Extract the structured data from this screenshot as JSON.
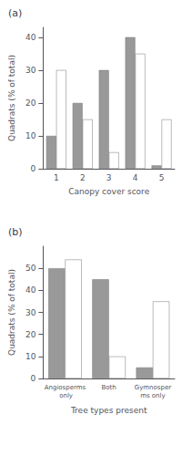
{
  "chart_data": [
    {
      "type": "bar",
      "title": "(a)",
      "categories": [
        "1",
        "2",
        "3",
        "4",
        "5"
      ],
      "series": [
        {
          "color": "#999999",
          "values": [
            10,
            20,
            30,
            40,
            1
          ]
        },
        {
          "color": "#ffffff",
          "values": [
            30,
            15,
            5,
            35,
            15
          ]
        }
      ],
      "xlabel": "Canopy cover score",
      "ylabel": "Quadrats (% of total)",
      "ylim": [
        0,
        43
      ],
      "yticks": [
        0,
        10,
        20,
        30,
        40
      ],
      "grid": false
    },
    {
      "type": "bar",
      "title": "(b)",
      "categories": [
        "Angiosperms only",
        "Both",
        "Gymnosperms only"
      ],
      "series": [
        {
          "color": "#999999",
          "values": [
            50,
            45,
            5
          ]
        },
        {
          "color": "#ffffff",
          "values": [
            54,
            10,
            35
          ]
        }
      ],
      "xlabel": "Tree types present",
      "ylabel": "Quadrats (% of total)",
      "ylim": [
        0,
        60
      ],
      "yticks": [
        0,
        10,
        20,
        30,
        40,
        50
      ],
      "grid": false
    }
  ]
}
